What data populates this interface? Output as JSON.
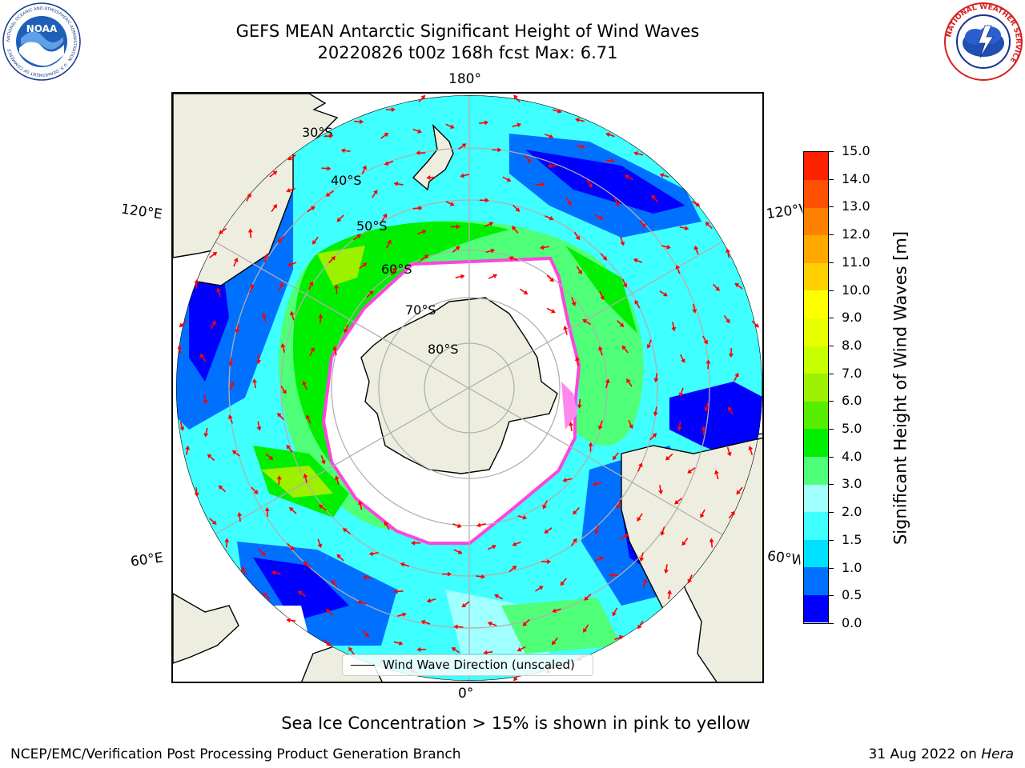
{
  "title": {
    "line1": "GEFS MEAN Antarctic Significant Height of Wind Waves",
    "line2": "20220826 t00z 168h fcst   Max: 6.71"
  },
  "logos": {
    "noaa": "NOAA",
    "noaa_ring": "NATIONAL OCEANIC AND ATMOSPHERIC ADMINISTRATION · U.S. DEPARTMENT OF COMMERCE",
    "nws_ring": "NATIONAL WEATHER SERVICE"
  },
  "map": {
    "projection": "south-polar-stereographic",
    "longitude_labels": {
      "top": "180°",
      "bottom": "0°",
      "left_upper": "120°E",
      "left_lower": "60°E",
      "right_upper": "120°W",
      "right_lower": "60°W"
    },
    "latitude_labels": [
      "30°S",
      "40°S",
      "50°S",
      "60°S",
      "70°S",
      "80°S"
    ],
    "legend": "Wind Wave Direction (unscaled)",
    "colors": {
      "land": "#eeeee0",
      "ice_edge": "#ff44dd",
      "arrow": "#ff0000",
      "grid": "#b0b0b0"
    }
  },
  "colorbar": {
    "label": "Significant Height of Wind Waves [m]",
    "ticks": [
      "0.0",
      "0.5",
      "1.0",
      "1.5",
      "2.0",
      "3.0",
      "4.0",
      "5.0",
      "6.0",
      "7.0",
      "8.0",
      "9.0",
      "10.0",
      "11.0",
      "12.0",
      "13.0",
      "14.0",
      "15.0"
    ],
    "colors": [
      "#0000ff",
      "#0070ff",
      "#00e0ff",
      "#40ffff",
      "#a0ffff",
      "#50ff78",
      "#00ee00",
      "#55ee00",
      "#9cf000",
      "#c8ff00",
      "#e8ff00",
      "#ffff00",
      "#ffd000",
      "#ffa800",
      "#ff8000",
      "#ff5000",
      "#ff2000"
    ]
  },
  "notes": {
    "sea_ice": "Sea Ice Concentration > 15% is shown in pink to yellow",
    "footer_left": "NCEP/EMC/Verification Post Processing Product Generation Branch",
    "footer_right_date": "31 Aug 2022 on ",
    "footer_right_machine": "Hera"
  }
}
